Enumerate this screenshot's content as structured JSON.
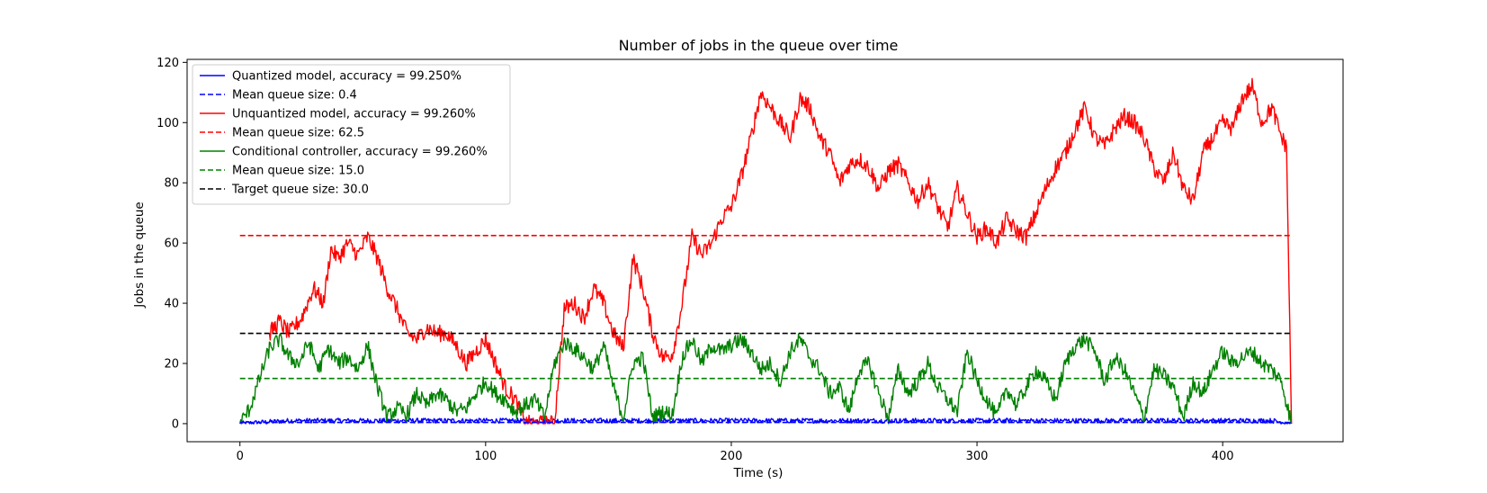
{
  "chart_data": {
    "type": "line",
    "title": "Number of jobs in the queue over time",
    "xlabel": "Time (s)",
    "ylabel": "Jobs in the queue",
    "xlim": [
      -21.5,
      449
    ],
    "ylim": [
      -6,
      121
    ],
    "xticks": [
      0,
      100,
      200,
      300,
      400
    ],
    "yticks": [
      0,
      20,
      40,
      60,
      80,
      100,
      120
    ],
    "grid": false,
    "legend_position": "upper-left",
    "legend": [
      {
        "label": "Quantized model, accuracy = 99.250%",
        "color": "#0000ff",
        "style": "solid"
      },
      {
        "label": "Mean queue size: 0.4",
        "color": "#0000ff",
        "style": "dashed"
      },
      {
        "label": "Unquantized model, accuracy = 99.260%",
        "color": "#ff0000",
        "style": "solid"
      },
      {
        "label": "Mean queue size: 62.5",
        "color": "#ff0000",
        "style": "dashed"
      },
      {
        "label": "Conditional controller, accuracy = 99.260%",
        "color": "#008000",
        "style": "solid"
      },
      {
        "label": "Mean queue size: 15.0",
        "color": "#008000",
        "style": "dashed"
      },
      {
        "label": "Target queue size: 30.0",
        "color": "#000000",
        "style": "dashed"
      }
    ],
    "series": [
      {
        "color": "#0000ff",
        "style": "solid",
        "noise": 0.8,
        "clip": [
          0,
          5
        ],
        "x": [
          0,
          20,
          40,
          60,
          80,
          100,
          120,
          140,
          160,
          180,
          200,
          210,
          220,
          240,
          260,
          280,
          300,
          320,
          340,
          360,
          380,
          400,
          420,
          428
        ],
        "values": [
          0,
          1,
          1,
          1,
          1,
          1,
          1,
          1,
          1,
          1,
          1,
          1,
          1,
          1,
          1,
          1,
          1,
          1,
          1,
          1,
          1,
          1,
          1,
          0
        ]
      },
      {
        "color": "#ff0000",
        "style": "solid",
        "noise": 2.8,
        "clip": [
          0,
          115
        ],
        "x": [
          12,
          16,
          20,
          25,
          30,
          34,
          37,
          40,
          44,
          48,
          52,
          56,
          60,
          64,
          68,
          72,
          76,
          80,
          84,
          88,
          92,
          96,
          100,
          104,
          108,
          112,
          116,
          120,
          124,
          128,
          132,
          136,
          140,
          144,
          148,
          152,
          156,
          160,
          164,
          168,
          172,
          176,
          180,
          184,
          188,
          192,
          196,
          200,
          204,
          208,
          212,
          216,
          220,
          224,
          228,
          232,
          236,
          240,
          244,
          248,
          252,
          256,
          260,
          264,
          268,
          272,
          276,
          280,
          284,
          288,
          292,
          296,
          300,
          304,
          308,
          312,
          316,
          320,
          324,
          328,
          332,
          336,
          340,
          344,
          348,
          352,
          356,
          360,
          364,
          368,
          372,
          376,
          380,
          384,
          388,
          392,
          396,
          400,
          404,
          408,
          412,
          416,
          420,
          424,
          426,
          428
        ],
        "values": [
          30,
          34,
          30,
          35,
          45,
          40,
          58,
          55,
          60,
          56,
          62,
          55,
          45,
          38,
          30,
          28,
          32,
          30,
          30,
          26,
          20,
          24,
          28,
          20,
          12,
          8,
          0,
          0,
          0,
          0,
          38,
          40,
          35,
          45,
          40,
          30,
          25,
          55,
          45,
          30,
          22,
          23,
          40,
          62,
          56,
          60,
          68,
          72,
          82,
          95,
          110,
          105,
          100,
          95,
          108,
          105,
          95,
          90,
          80,
          86,
          88,
          85,
          78,
          84,
          86,
          80,
          74,
          80,
          72,
          65,
          78,
          70,
          62,
          65,
          60,
          68,
          64,
          62,
          70,
          78,
          85,
          90,
          98,
          105,
          95,
          92,
          98,
          102,
          100,
          95,
          85,
          80,
          90,
          78,
          74,
          90,
          95,
          100,
          98,
          108,
          112,
          100,
          105,
          95,
          92,
          0
        ]
      },
      {
        "color": "#008000",
        "style": "solid",
        "noise": 2.6,
        "clip": [
          0,
          31
        ],
        "x": [
          0,
          4,
          8,
          12,
          16,
          20,
          24,
          28,
          32,
          36,
          40,
          44,
          48,
          52,
          56,
          60,
          64,
          68,
          72,
          76,
          80,
          84,
          88,
          92,
          96,
          100,
          104,
          108,
          112,
          116,
          120,
          124,
          128,
          132,
          136,
          140,
          144,
          148,
          152,
          156,
          160,
          164,
          168,
          172,
          176,
          180,
          184,
          188,
          192,
          196,
          200,
          204,
          208,
          212,
          216,
          220,
          224,
          228,
          232,
          236,
          240,
          244,
          248,
          252,
          256,
          260,
          264,
          268,
          272,
          276,
          280,
          284,
          288,
          292,
          296,
          300,
          304,
          308,
          312,
          316,
          320,
          324,
          328,
          332,
          336,
          340,
          344,
          348,
          352,
          356,
          360,
          364,
          368,
          372,
          376,
          380,
          384,
          388,
          392,
          396,
          400,
          404,
          408,
          412,
          416,
          420,
          424,
          428
        ],
        "values": [
          0,
          5,
          15,
          25,
          28,
          22,
          20,
          27,
          18,
          25,
          20,
          22,
          18,
          26,
          12,
          2,
          5,
          3,
          10,
          6,
          10,
          8,
          4,
          5,
          10,
          14,
          10,
          8,
          4,
          6,
          8,
          2,
          20,
          27,
          25,
          22,
          18,
          26,
          12,
          2,
          20,
          22,
          2,
          4,
          3,
          22,
          28,
          20,
          26,
          24,
          26,
          28,
          24,
          18,
          20,
          14,
          24,
          28,
          22,
          18,
          10,
          12,
          4,
          18,
          20,
          10,
          2,
          18,
          10,
          14,
          20,
          12,
          8,
          4,
          24,
          14,
          8,
          2,
          12,
          6,
          12,
          18,
          14,
          8,
          20,
          26,
          28,
          24,
          14,
          22,
          18,
          10,
          2,
          18,
          16,
          12,
          2,
          14,
          10,
          18,
          24,
          20,
          22,
          24,
          20,
          18,
          14,
          0
        ]
      }
    ],
    "hlines": [
      {
        "y": 0.4,
        "color": "#0000ff",
        "style": "dashed",
        "xmin": 0,
        "xmax": 428
      },
      {
        "y": 62.5,
        "color": "#ff0000",
        "style": "dashed",
        "xmin": 0,
        "xmax": 428
      },
      {
        "y": 15.0,
        "color": "#008000",
        "style": "dashed",
        "xmin": 0,
        "xmax": 428
      },
      {
        "y": 30.0,
        "color": "#000000",
        "style": "dashed",
        "xmin": 0,
        "xmax": 428
      }
    ]
  }
}
